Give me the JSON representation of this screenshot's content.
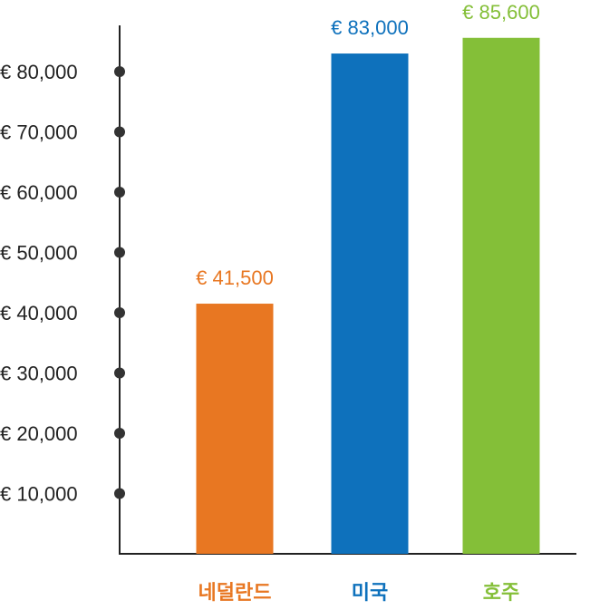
{
  "chart_data": {
    "type": "bar",
    "categories": [
      "네덜란드",
      "미국",
      "호주"
    ],
    "values": [
      41500,
      83000,
      85600
    ],
    "value_labels": [
      "€ 41,500",
      "€ 83,000",
      "€ 85,600"
    ],
    "colors": [
      "#e87722",
      "#0e71bc",
      "#84bf38"
    ],
    "yticks": [
      10000,
      20000,
      30000,
      40000,
      50000,
      60000,
      70000,
      80000
    ],
    "ytick_labels": [
      "€ 10,000",
      "€ 20,000",
      "€ 30,000",
      "€ 40,000",
      "€ 50,000",
      "€ 60,000",
      "€ 70,000",
      "€ 80,000"
    ],
    "ylim": [
      0,
      90000
    ],
    "grid": false,
    "legend": "none",
    "title": "",
    "xlabel": "",
    "ylabel": ""
  }
}
